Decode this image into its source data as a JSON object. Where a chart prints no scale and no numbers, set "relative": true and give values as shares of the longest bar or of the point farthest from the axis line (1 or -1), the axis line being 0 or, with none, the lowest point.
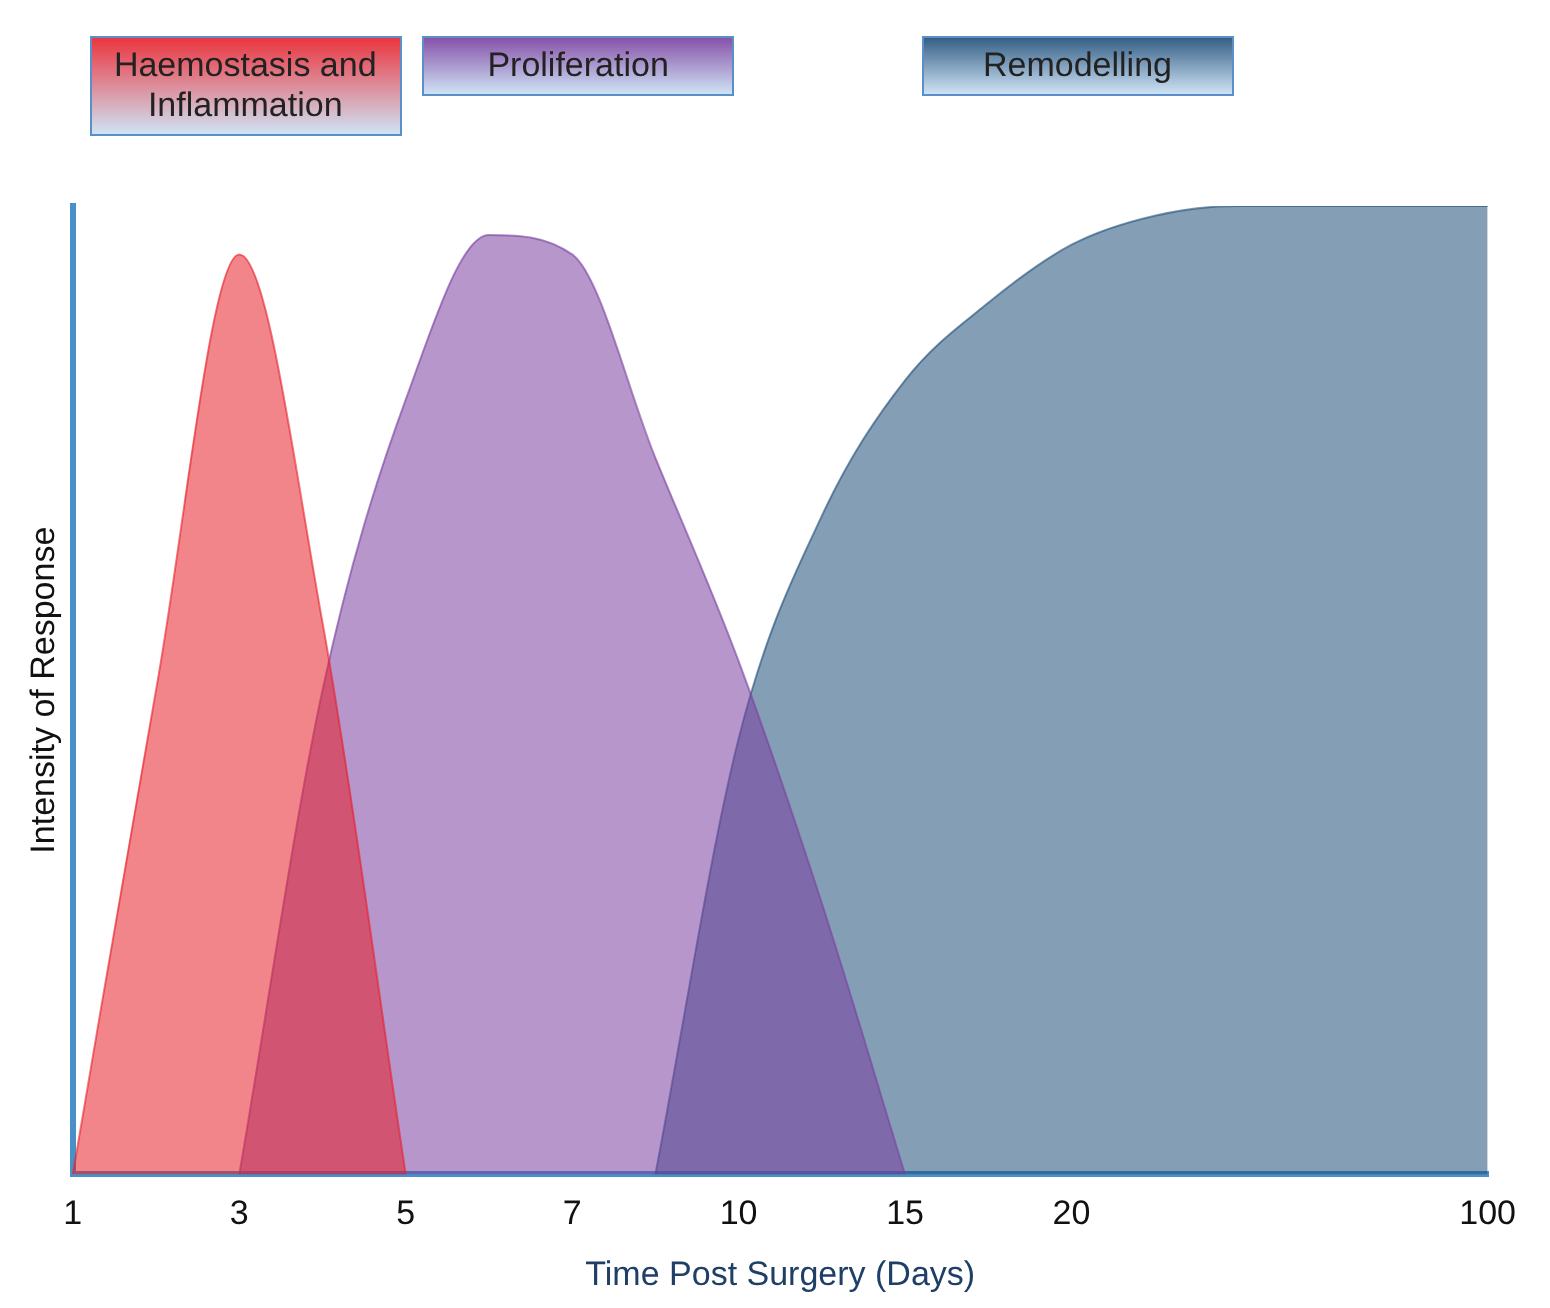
{
  "chart_data": {
    "type": "area",
    "relative": true,
    "xlabel": "Time Post Surgery (Days)",
    "ylabel": "Intensity of Response",
    "legend": false,
    "grid": false,
    "marker": "none",
    "categories": [
      "1",
      null,
      "3",
      null,
      "5",
      null,
      "7",
      null,
      "10",
      null,
      "15",
      null,
      "20",
      null,
      null,
      null,
      null,
      "100"
    ],
    "series": [
      {
        "name": "Haemostasis and Inflammation",
        "color": "#e8202a",
        "values": [
          0,
          0.5,
          0.95,
          0.57,
          0,
          null,
          null,
          null,
          null,
          null,
          null,
          null,
          null,
          null,
          null,
          null,
          null,
          null
        ]
      },
      {
        "name": "Proliferation",
        "color": "#7a3fa0",
        "values": [
          null,
          null,
          0,
          0.5,
          0.8,
          0.97,
          0.95,
          0.74,
          0.53,
          0.28,
          0,
          null,
          null,
          null,
          null,
          null,
          null,
          null
        ]
      },
      {
        "name": "Remodelling",
        "color": "#1f4e79",
        "values": [
          null,
          null,
          null,
          null,
          null,
          null,
          null,
          0,
          0.45,
          0.68,
          0.82,
          0.9,
          0.96,
          0.99,
          1,
          1,
          1,
          1
        ]
      }
    ]
  }
}
